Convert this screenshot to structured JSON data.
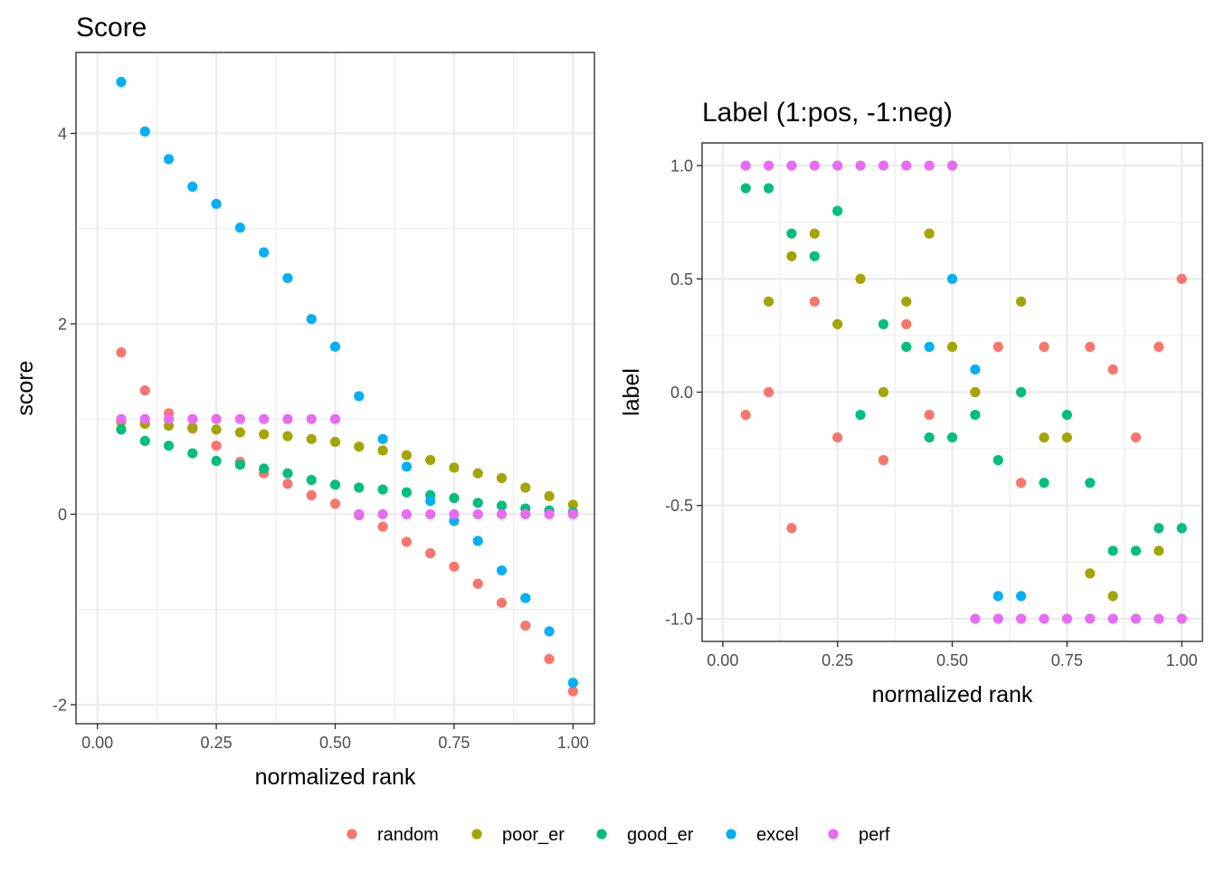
{
  "chart_data": [
    {
      "type": "scatter",
      "title": "Score",
      "xlabel": "normalized rank",
      "ylabel": "score",
      "xlim": [
        -0.045,
        1.045
      ],
      "ylim": [
        -2.2,
        4.85
      ],
      "x_ticks": [
        0,
        0.25,
        0.5,
        0.75,
        1
      ],
      "x_tick_labels": [
        "0.00",
        "0.25",
        "0.50",
        "0.75",
        "1.00"
      ],
      "y_ticks": [
        -2,
        0,
        2,
        4
      ],
      "y_tick_labels": [
        "-2",
        "0",
        "2",
        "4"
      ],
      "grid": true,
      "x": [
        0.05,
        0.1,
        0.15,
        0.2,
        0.25,
        0.3,
        0.35,
        0.4,
        0.45,
        0.5,
        0.55,
        0.6,
        0.65,
        0.7,
        0.75,
        0.8,
        0.85,
        0.9,
        0.95,
        1.0
      ],
      "series": [
        {
          "name": "random",
          "color": "#F8766D",
          "values": [
            1.7,
            1.3,
            1.06,
            0.9,
            0.72,
            0.55,
            0.43,
            0.32,
            0.2,
            0.11,
            -0.01,
            -0.13,
            -0.29,
            -0.41,
            -0.55,
            -0.73,
            -0.93,
            -1.17,
            -1.52,
            -1.86
          ]
        },
        {
          "name": "poor_er",
          "color": "#A3A500",
          "values": [
            0.97,
            0.95,
            0.93,
            0.91,
            0.89,
            0.86,
            0.84,
            0.82,
            0.79,
            0.76,
            0.71,
            0.67,
            0.62,
            0.57,
            0.49,
            0.43,
            0.38,
            0.28,
            0.19,
            0.1
          ]
        },
        {
          "name": "good_er",
          "color": "#00BF7D",
          "values": [
            0.89,
            0.77,
            0.72,
            0.64,
            0.56,
            0.52,
            0.48,
            0.43,
            0.36,
            0.31,
            0.28,
            0.26,
            0.23,
            0.2,
            0.17,
            0.12,
            0.09,
            0.06,
            0.04,
            0.02
          ]
        },
        {
          "name": "excel",
          "color": "#00B0F6",
          "values": [
            4.54,
            4.02,
            3.73,
            3.44,
            3.26,
            3.01,
            2.75,
            2.48,
            2.05,
            1.76,
            1.24,
            0.79,
            0.5,
            0.14,
            -0.07,
            -0.28,
            -0.59,
            -0.88,
            -1.23,
            -1.77
          ]
        },
        {
          "name": "perf",
          "color": "#E76BF3",
          "values": [
            1,
            1,
            1,
            1,
            1,
            1,
            1,
            1,
            1,
            1,
            0,
            0,
            0,
            0,
            0,
            0,
            0,
            0,
            0,
            0
          ]
        }
      ]
    },
    {
      "type": "scatter",
      "title": "Label (1:pos, -1:neg)",
      "xlabel": "normalized rank",
      "ylabel": "label",
      "xlim": [
        -0.045,
        1.045
      ],
      "ylim": [
        -1.1,
        1.1
      ],
      "x_ticks": [
        0,
        0.25,
        0.5,
        0.75,
        1
      ],
      "x_tick_labels": [
        "0.00",
        "0.25",
        "0.50",
        "0.75",
        "1.00"
      ],
      "y_ticks": [
        -1,
        -0.5,
        0,
        0.5,
        1
      ],
      "y_tick_labels": [
        "-1.0",
        "-0.5",
        "0.0",
        "0.5",
        "1.0"
      ],
      "grid": true,
      "x": [
        0.05,
        0.1,
        0.15,
        0.2,
        0.25,
        0.3,
        0.35,
        0.4,
        0.45,
        0.5,
        0.55,
        0.6,
        0.65,
        0.7,
        0.75,
        0.8,
        0.85,
        0.9,
        0.95,
        1.0
      ],
      "series": [
        {
          "name": "random",
          "color": "#F8766D",
          "values": [
            -0.1,
            0.0,
            -0.6,
            0.4,
            -0.2,
            null,
            -0.3,
            0.3,
            -0.1,
            null,
            null,
            0.2,
            -0.4,
            0.2,
            null,
            0.2,
            0.1,
            -0.2,
            0.2,
            0.5
          ]
        },
        {
          "name": "poor_er",
          "color": "#A3A500",
          "values": [
            null,
            0.4,
            0.6,
            0.7,
            0.3,
            0.5,
            0.0,
            0.4,
            0.7,
            0.2,
            0.0,
            null,
            0.4,
            -0.2,
            -0.2,
            -0.8,
            -0.9,
            null,
            -0.7,
            null
          ]
        },
        {
          "name": "good_er",
          "color": "#00BF7D",
          "values": [
            0.9,
            0.9,
            0.7,
            0.6,
            0.8,
            -0.1,
            0.3,
            0.2,
            -0.2,
            -0.2,
            -0.1,
            -0.3,
            0.0,
            -0.4,
            -0.1,
            -0.4,
            -0.7,
            -0.7,
            -0.6,
            -0.6
          ]
        },
        {
          "name": "excel",
          "color": "#00B0F6",
          "values": [
            null,
            null,
            null,
            null,
            null,
            null,
            null,
            null,
            0.2,
            0.5,
            0.1,
            -0.9,
            -0.9,
            null,
            null,
            null,
            null,
            null,
            null,
            null
          ]
        },
        {
          "name": "perf",
          "color": "#E76BF3",
          "values": [
            1,
            1,
            1,
            1,
            1,
            1,
            1,
            1,
            1,
            1,
            -1,
            -1,
            -1,
            -1,
            -1,
            -1,
            -1,
            -1,
            -1,
            -1
          ]
        }
      ]
    }
  ],
  "legend": {
    "position": "bottom",
    "items": [
      {
        "label": "random",
        "color": "#F8766D"
      },
      {
        "label": "poor_er",
        "color": "#A3A500"
      },
      {
        "label": "good_er",
        "color": "#00BF7D"
      },
      {
        "label": "excel",
        "color": "#00B0F6"
      },
      {
        "label": "perf",
        "color": "#E76BF3"
      }
    ]
  }
}
